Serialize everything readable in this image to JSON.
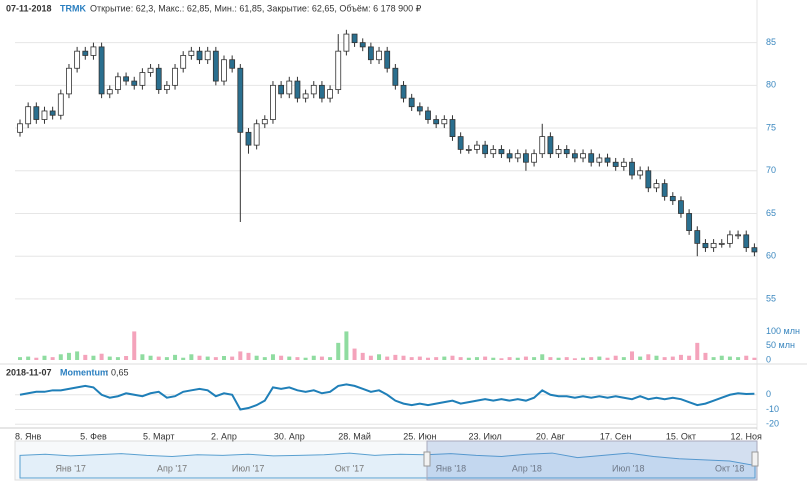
{
  "header": {
    "date": "07-11-2018",
    "ticker": "TRMK",
    "info": "Открытие: 62,3, Макс.: 62,85, Мин.: 61,85, Закрытие: 62,65, Объём: 6 178 900 ₽"
  },
  "chart_data": [
    {
      "type": "candlestick",
      "up_color": "#ffffff",
      "down_color": "#2a6f8f",
      "grid": true,
      "categories": [
        null,
        "8. Янв",
        null,
        null,
        null,
        null,
        null,
        null,
        null,
        "5. Фев",
        null,
        null,
        null,
        null,
        null,
        null,
        null,
        "5. Март",
        null,
        null,
        null,
        null,
        null,
        null,
        null,
        "2. Апр",
        null,
        null,
        null,
        null,
        null,
        null,
        null,
        "30. Апр",
        null,
        null,
        null,
        null,
        null,
        null,
        null,
        "28. Май",
        null,
        null,
        null,
        null,
        null,
        null,
        null,
        "25. Июн",
        null,
        null,
        null,
        null,
        null,
        null,
        null,
        "23. Июл",
        null,
        null,
        null,
        null,
        null,
        null,
        null,
        "20. Авг",
        null,
        null,
        null,
        null,
        null,
        null,
        null,
        "17. Сен",
        null,
        null,
        null,
        null,
        null,
        null,
        null,
        "15. Окт",
        null,
        null,
        null,
        null,
        null,
        null,
        null,
        "12. Ноя",
        null
      ],
      "open": [
        74.5,
        75.5,
        77.5,
        76,
        77,
        76.5,
        79,
        82,
        84,
        83.5,
        84.5,
        79,
        79.5,
        81,
        80.5,
        80,
        81.5,
        82,
        79.5,
        80,
        82,
        83.5,
        84,
        83,
        84,
        80.5,
        83,
        82,
        74.5,
        73,
        75.5,
        76,
        80,
        79,
        80.5,
        78.5,
        79,
        80,
        78.5,
        79.5,
        84,
        86,
        85,
        84.5,
        83,
        84,
        82,
        80,
        78.5,
        77.5,
        77,
        76,
        75.5,
        76,
        74,
        72.5,
        72.5,
        73,
        72,
        72.5,
        72,
        71.5,
        72,
        71,
        72,
        74,
        72,
        72.5,
        72,
        71.5,
        72,
        71,
        71.5,
        71,
        70.5,
        71,
        69.5,
        70,
        68,
        68.5,
        67,
        66.5,
        65,
        63,
        61.5,
        61,
        61.5,
        61.5,
        62.5,
        62.5,
        61
      ],
      "high": [
        76,
        78,
        78,
        77.5,
        77.5,
        79.5,
        82.5,
        84.5,
        84.5,
        85,
        85,
        80,
        81.5,
        81.5,
        81,
        82,
        82.5,
        82.5,
        80.5,
        82.5,
        84,
        84.5,
        84.5,
        84.5,
        84.5,
        83.5,
        83.5,
        82.5,
        75,
        76,
        76.5,
        80.5,
        80.5,
        81,
        81,
        79.5,
        80.5,
        80.5,
        80,
        86,
        86.5,
        86,
        85.5,
        85,
        84.5,
        84.5,
        82.5,
        80.5,
        79,
        78,
        77.5,
        76.5,
        76.5,
        76.5,
        74.5,
        73,
        73.5,
        73.5,
        73,
        73,
        72.5,
        72.5,
        72.5,
        72.5,
        75.5,
        74.5,
        73,
        73,
        72.5,
        72.5,
        72.5,
        72,
        72,
        71.5,
        71.5,
        71.5,
        70.5,
        70.5,
        69,
        69,
        67.5,
        67,
        65.5,
        63.5,
        62,
        62,
        62,
        63,
        63,
        63,
        61.5
      ],
      "low": [
        74,
        75,
        75.5,
        75.5,
        76,
        76,
        78.5,
        81.5,
        83,
        83,
        78.5,
        78.5,
        79,
        80,
        79.5,
        79.5,
        81,
        79,
        79,
        79.5,
        81.5,
        83,
        82.5,
        82.5,
        80,
        80,
        81.5,
        64,
        72,
        72.5,
        75,
        75.5,
        78.5,
        78.5,
        78,
        78,
        78.5,
        78,
        78,
        79,
        83.5,
        84.5,
        84,
        82.5,
        82.5,
        81.5,
        79.5,
        78,
        77,
        76.5,
        75.5,
        75,
        75,
        73.5,
        72,
        72,
        72,
        71.5,
        71.5,
        71.5,
        71,
        71,
        70,
        70.5,
        71.5,
        71.5,
        71.5,
        71.5,
        71,
        71,
        70.5,
        70.5,
        70.5,
        70,
        70,
        69,
        69,
        67.5,
        67.5,
        66.5,
        66,
        64.5,
        62.5,
        60,
        60.5,
        60.5,
        61,
        61,
        62,
        60.5,
        60
      ],
      "close": [
        75.5,
        77.5,
        76,
        77,
        76.5,
        79,
        82,
        84,
        83.5,
        84.5,
        79,
        79.5,
        81,
        80.5,
        80,
        81.5,
        82,
        79.5,
        80,
        82,
        83.5,
        84,
        83,
        84,
        80.5,
        83,
        82,
        74.5,
        73,
        75.5,
        76,
        80,
        79,
        80.5,
        78.5,
        79,
        80,
        78.5,
        79.5,
        84,
        86,
        85,
        84.5,
        83,
        84,
        82,
        80,
        78.5,
        77.5,
        77,
        76,
        75.5,
        76,
        74,
        72.5,
        72.5,
        73,
        72,
        72.5,
        72,
        71.5,
        72,
        71,
        72,
        74,
        72,
        72.5,
        72,
        71.5,
        72,
        71,
        71.5,
        71,
        70.5,
        71,
        69.5,
        70,
        68,
        68.5,
        67,
        66.5,
        65,
        63,
        61.5,
        61,
        61.5,
        61.5,
        62.5,
        62.5,
        61,
        60.5
      ],
      "ylim": [
        53,
        88
      ],
      "yticks": [
        55,
        60,
        65,
        70,
        75,
        80,
        85
      ]
    },
    {
      "type": "bar",
      "up_color": "#8fdca0",
      "down_color": "#f4a3bb",
      "values": [
        10,
        12,
        8,
        15,
        10,
        20,
        25,
        30,
        18,
        15,
        22,
        12,
        10,
        14,
        100,
        20,
        15,
        12,
        10,
        18,
        8,
        20,
        15,
        12,
        10,
        14,
        12,
        30,
        25,
        15,
        10,
        20,
        15,
        12,
        10,
        8,
        15,
        12,
        10,
        60,
        100,
        40,
        25,
        15,
        20,
        12,
        18,
        15,
        10,
        12,
        8,
        10,
        12,
        15,
        10,
        8,
        10,
        12,
        8,
        6,
        10,
        8,
        12,
        10,
        20,
        10,
        8,
        10,
        6,
        8,
        10,
        12,
        8,
        15,
        10,
        30,
        12,
        20,
        15,
        10,
        12,
        18,
        15,
        60,
        25,
        10,
        15,
        12,
        10,
        15,
        8
      ],
      "ylim": [
        0,
        140
      ],
      "yticks": [
        0,
        {
          "value": 50,
          "label": "50 млн"
        },
        {
          "value": 100,
          "label": "100 млн"
        }
      ]
    },
    {
      "type": "line",
      "subtitle": "2018-11-07",
      "title": "Momentum",
      "current": ": 0,65",
      "color": "#1f7fb8",
      "values": [
        0,
        1,
        2,
        2,
        3,
        3,
        4,
        5,
        6,
        5,
        0,
        -2,
        -1,
        1,
        0,
        -1,
        1,
        2,
        -2,
        -1,
        2,
        3,
        4,
        3,
        -1,
        1,
        0,
        -10,
        -9,
        -7,
        -4,
        5,
        4,
        5,
        3,
        2,
        3,
        1,
        2,
        6,
        7,
        6,
        4,
        2,
        3,
        0,
        -4,
        -6,
        -7,
        -6,
        -7,
        -6,
        -5,
        -4,
        -6,
        -5,
        -4,
        -3,
        -4,
        -3,
        -4,
        -3,
        -4,
        -2,
        3,
        0,
        -1,
        -1,
        -2,
        -1,
        -2,
        -1,
        -2,
        -1,
        -2,
        -3,
        -1,
        -3,
        -2,
        -3,
        -2,
        -3,
        -5,
        -7,
        -6,
        -4,
        -2,
        0,
        1,
        0.5,
        0.65
      ],
      "ylim": [
        -20.5,
        10
      ],
      "yticks": [
        0,
        -10,
        -20
      ]
    },
    {
      "type": "area",
      "color": "#5aa0d0",
      "categories": [
        null,
        null,
        "Янв '17",
        null,
        null,
        null,
        "Апр '17",
        null,
        null,
        "Июл '17",
        null,
        null,
        null,
        "Окт '17",
        null,
        null,
        null,
        "Янв '18",
        null,
        null,
        "Апр '18",
        null,
        null,
        null,
        "Июл '18",
        null,
        null,
        null,
        "Окт '18",
        null
      ],
      "values": [
        80,
        82,
        79,
        81,
        83,
        80,
        78,
        81,
        80,
        82,
        79,
        80,
        81,
        84,
        80,
        82,
        81,
        83,
        80,
        78,
        82,
        84,
        76,
        80,
        84,
        78,
        74,
        72,
        70,
        62
      ],
      "ylim": [
        40,
        100
      ]
    }
  ]
}
